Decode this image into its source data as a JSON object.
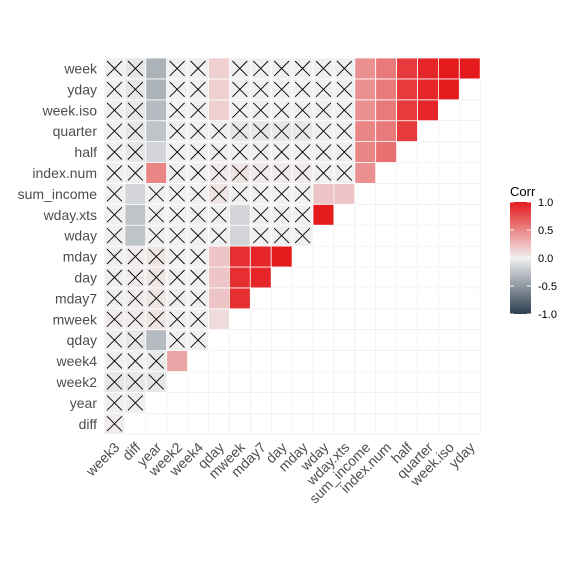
{
  "chart_data": {
    "type": "heatmap",
    "variables": [
      "week3",
      "diff",
      "year",
      "week2",
      "week4",
      "qday",
      "mweek",
      "mday7",
      "day",
      "mday",
      "wday",
      "wday.xts",
      "sum_income",
      "index.num",
      "half",
      "quarter",
      "week.iso",
      "yday"
    ],
    "row_labels": [
      "week",
      "yday",
      "week.iso",
      "quarter",
      "half",
      "index.num",
      "sum_income",
      "wday.xts",
      "wday",
      "mday",
      "day",
      "mday7",
      "mweek",
      "qday",
      "week4",
      "week2",
      "year",
      "diff"
    ],
    "col_labels": [
      "week3",
      "diff",
      "year",
      "week2",
      "week4",
      "qday",
      "mweek",
      "mday7",
      "day",
      "mday",
      "wday",
      "wday.xts",
      "sum_income",
      "index.num",
      "half",
      "quarter",
      "week.iso",
      "yday"
    ],
    "legend": {
      "title": "Corr",
      "ticks": [
        "1.0",
        "0.5",
        "0.0",
        "-0.5",
        "-1.0"
      ],
      "tick_values": [
        1.0,
        0.5,
        0.0,
        -0.5,
        -1.0
      ],
      "colors": {
        "low": "#2c3e50",
        "mid": "#f0f0f0",
        "high": "#e41a1c"
      },
      "placement": "right"
    },
    "insignificant_marker": "X",
    "lower_triangle": [
      {
        "row": "diff",
        "values": [
          {
            "col": "week3",
            "r": 0.02,
            "x": true
          }
        ]
      },
      {
        "row": "year",
        "values": [
          {
            "col": "week3",
            "r": 0.01,
            "x": true
          },
          {
            "col": "diff",
            "r": 0.01,
            "x": true
          }
        ]
      },
      {
        "row": "week2",
        "values": [
          {
            "col": "week3",
            "r": -0.05,
            "x": true
          },
          {
            "col": "diff",
            "r": -0.05,
            "x": true
          },
          {
            "col": "year",
            "r": -0.05,
            "x": true
          }
        ]
      },
      {
        "row": "week4",
        "values": [
          {
            "col": "week3",
            "r": 0.01,
            "x": true
          },
          {
            "col": "diff",
            "r": 0.01,
            "x": true
          },
          {
            "col": "year",
            "r": -0.03,
            "x": true
          },
          {
            "col": "week2",
            "r": 0.35,
            "x": false
          }
        ]
      },
      {
        "row": "qday",
        "values": [
          {
            "col": "week3",
            "r": 0.01,
            "x": true
          },
          {
            "col": "diff",
            "r": -0.05,
            "x": true
          },
          {
            "col": "year",
            "r": -0.3,
            "x": false
          },
          {
            "col": "week2",
            "r": 0.0,
            "x": true
          },
          {
            "col": "week4",
            "r": 0.0,
            "x": true
          }
        ]
      },
      {
        "row": "mweek",
        "values": [
          {
            "col": "week3",
            "r": 0.02,
            "x": true
          },
          {
            "col": "diff",
            "r": 0.03,
            "x": true
          },
          {
            "col": "year",
            "r": 0.05,
            "x": true
          },
          {
            "col": "week2",
            "r": 0.01,
            "x": true
          },
          {
            "col": "week4",
            "r": 0.01,
            "x": true
          },
          {
            "col": "qday",
            "r": 0.1,
            "x": false
          }
        ]
      },
      {
        "row": "mday7",
        "values": [
          {
            "col": "week3",
            "r": 0.01,
            "x": true
          },
          {
            "col": "diff",
            "r": 0.02,
            "x": true
          },
          {
            "col": "year",
            "r": 0.05,
            "x": true
          },
          {
            "col": "week2",
            "r": 0.01,
            "x": true
          },
          {
            "col": "week4",
            "r": 0.0,
            "x": true
          },
          {
            "col": "qday",
            "r": 0.2,
            "x": false
          },
          {
            "col": "mweek",
            "r": 0.9,
            "x": false
          }
        ]
      },
      {
        "row": "day",
        "values": [
          {
            "col": "week3",
            "r": 0.01,
            "x": true
          },
          {
            "col": "diff",
            "r": 0.02,
            "x": true
          },
          {
            "col": "year",
            "r": 0.05,
            "x": true
          },
          {
            "col": "week2",
            "r": 0.0,
            "x": true
          },
          {
            "col": "week4",
            "r": 0.0,
            "x": true
          },
          {
            "col": "qday",
            "r": 0.2,
            "x": false
          },
          {
            "col": "mweek",
            "r": 0.9,
            "x": false
          },
          {
            "col": "mday7",
            "r": 0.95,
            "x": false
          }
        ]
      },
      {
        "row": "mday",
        "values": [
          {
            "col": "week3",
            "r": 0.01,
            "x": true
          },
          {
            "col": "diff",
            "r": 0.02,
            "x": true
          },
          {
            "col": "year",
            "r": 0.05,
            "x": true
          },
          {
            "col": "week2",
            "r": 0.0,
            "x": true
          },
          {
            "col": "week4",
            "r": 0.0,
            "x": true
          },
          {
            "col": "qday",
            "r": 0.2,
            "x": false
          },
          {
            "col": "mweek",
            "r": 0.9,
            "x": false
          },
          {
            "col": "mday7",
            "r": 0.95,
            "x": false
          },
          {
            "col": "day",
            "r": 1.0,
            "x": false
          }
        ]
      },
      {
        "row": "wday",
        "values": [
          {
            "col": "week3",
            "r": 0.0,
            "x": true
          },
          {
            "col": "diff",
            "r": -0.25,
            "x": false
          },
          {
            "col": "year",
            "r": 0.0,
            "x": true
          },
          {
            "col": "week2",
            "r": 0.0,
            "x": true
          },
          {
            "col": "week4",
            "r": 0.0,
            "x": true
          },
          {
            "col": "qday",
            "r": 0.0,
            "x": true
          },
          {
            "col": "mweek",
            "r": -0.15,
            "x": false
          },
          {
            "col": "mday7",
            "r": 0.0,
            "x": true
          },
          {
            "col": "day",
            "r": 0.0,
            "x": true
          },
          {
            "col": "mday",
            "r": 0.0,
            "x": true
          }
        ]
      },
      {
        "row": "wday.xts",
        "values": [
          {
            "col": "week3",
            "r": 0.0,
            "x": true
          },
          {
            "col": "diff",
            "r": -0.25,
            "x": false
          },
          {
            "col": "year",
            "r": 0.0,
            "x": true
          },
          {
            "col": "week2",
            "r": 0.0,
            "x": true
          },
          {
            "col": "week4",
            "r": 0.0,
            "x": true
          },
          {
            "col": "qday",
            "r": 0.0,
            "x": true
          },
          {
            "col": "mweek",
            "r": -0.15,
            "x": false
          },
          {
            "col": "mday7",
            "r": 0.0,
            "x": true
          },
          {
            "col": "day",
            "r": 0.0,
            "x": true
          },
          {
            "col": "mday",
            "r": 0.0,
            "x": true
          },
          {
            "col": "wday",
            "r": 1.0,
            "x": false
          }
        ]
      },
      {
        "row": "sum_income",
        "values": [
          {
            "col": "week3",
            "r": 0.0,
            "x": true
          },
          {
            "col": "diff",
            "r": -0.15,
            "x": false
          },
          {
            "col": "year",
            "r": 0.0,
            "x": true
          },
          {
            "col": "week2",
            "r": 0.0,
            "x": true
          },
          {
            "col": "week4",
            "r": 0.0,
            "x": true
          },
          {
            "col": "qday",
            "r": 0.05,
            "x": true
          },
          {
            "col": "mweek",
            "r": 0.0,
            "x": true
          },
          {
            "col": "mday7",
            "r": 0.0,
            "x": true
          },
          {
            "col": "day",
            "r": 0.0,
            "x": true
          },
          {
            "col": "mday",
            "r": 0.0,
            "x": true
          },
          {
            "col": "wday",
            "r": 0.2,
            "x": false
          },
          {
            "col": "wday.xts",
            "r": 0.2,
            "x": false
          }
        ]
      },
      {
        "row": "index.num",
        "values": [
          {
            "col": "week3",
            "r": 0.0,
            "x": true
          },
          {
            "col": "diff",
            "r": 0.0,
            "x": true
          },
          {
            "col": "year",
            "r": 0.5,
            "x": false
          },
          {
            "col": "week2",
            "r": 0.0,
            "x": true
          },
          {
            "col": "week4",
            "r": 0.0,
            "x": true
          },
          {
            "col": "qday",
            "r": 0.03,
            "x": true
          },
          {
            "col": "mweek",
            "r": 0.05,
            "x": true
          },
          {
            "col": "mday7",
            "r": 0.03,
            "x": true
          },
          {
            "col": "day",
            "r": 0.03,
            "x": true
          },
          {
            "col": "mday",
            "r": 0.03,
            "x": true
          },
          {
            "col": "wday",
            "r": 0.0,
            "x": true
          },
          {
            "col": "wday.xts",
            "r": 0.0,
            "x": true
          },
          {
            "col": "sum_income",
            "r": 0.45,
            "x": false
          }
        ]
      },
      {
        "row": "half",
        "values": [
          {
            "col": "week3",
            "r": 0.0,
            "x": true
          },
          {
            "col": "diff",
            "r": -0.05,
            "x": true
          },
          {
            "col": "year",
            "r": -0.15,
            "x": false
          },
          {
            "col": "week2",
            "r": 0.0,
            "x": true
          },
          {
            "col": "week4",
            "r": 0.0,
            "x": true
          },
          {
            "col": "qday",
            "r": 0.0,
            "x": true
          },
          {
            "col": "mweek",
            "r": 0.0,
            "x": true
          },
          {
            "col": "mday7",
            "r": 0.0,
            "x": true
          },
          {
            "col": "day",
            "r": 0.0,
            "x": true
          },
          {
            "col": "mday",
            "r": 0.0,
            "x": true
          },
          {
            "col": "wday",
            "r": 0.0,
            "x": true
          },
          {
            "col": "wday.xts",
            "r": 0.0,
            "x": true
          },
          {
            "col": "sum_income",
            "r": 0.5,
            "x": false
          },
          {
            "col": "index.num",
            "r": 0.6,
            "x": false
          }
        ]
      },
      {
        "row": "quarter",
        "values": [
          {
            "col": "week3",
            "r": 0.0,
            "x": true
          },
          {
            "col": "diff",
            "r": -0.05,
            "x": true
          },
          {
            "col": "year",
            "r": -0.25,
            "x": false
          },
          {
            "col": "week2",
            "r": 0.0,
            "x": true
          },
          {
            "col": "week4",
            "r": 0.0,
            "x": true
          },
          {
            "col": "qday",
            "r": 0.0,
            "x": true
          },
          {
            "col": "mweek",
            "r": -0.05,
            "x": true
          },
          {
            "col": "mday7",
            "r": -0.05,
            "x": true
          },
          {
            "col": "day",
            "r": -0.05,
            "x": true
          },
          {
            "col": "mday",
            "r": -0.05,
            "x": true
          },
          {
            "col": "wday",
            "r": 0.0,
            "x": true
          },
          {
            "col": "wday.xts",
            "r": 0.0,
            "x": true
          },
          {
            "col": "sum_income",
            "r": 0.5,
            "x": false
          },
          {
            "col": "index.num",
            "r": 0.55,
            "x": false
          },
          {
            "col": "half",
            "r": 0.85,
            "x": false
          }
        ]
      },
      {
        "row": "week.iso",
        "values": [
          {
            "col": "week3",
            "r": 0.0,
            "x": true
          },
          {
            "col": "diff",
            "r": -0.05,
            "x": true
          },
          {
            "col": "year",
            "r": -0.3,
            "x": false
          },
          {
            "col": "week2",
            "r": 0.0,
            "x": true
          },
          {
            "col": "week4",
            "r": 0.0,
            "x": true
          },
          {
            "col": "qday",
            "r": 0.15,
            "x": false
          },
          {
            "col": "mweek",
            "r": 0.0,
            "x": true
          },
          {
            "col": "mday7",
            "r": 0.0,
            "x": true
          },
          {
            "col": "day",
            "r": 0.0,
            "x": true
          },
          {
            "col": "mday",
            "r": 0.0,
            "x": true
          },
          {
            "col": "wday",
            "r": 0.0,
            "x": true
          },
          {
            "col": "wday.xts",
            "r": 0.0,
            "x": true
          },
          {
            "col": "sum_income",
            "r": 0.45,
            "x": false
          },
          {
            "col": "index.num",
            "r": 0.55,
            "x": false
          },
          {
            "col": "half",
            "r": 0.85,
            "x": false
          },
          {
            "col": "quarter",
            "r": 0.95,
            "x": false
          }
        ]
      },
      {
        "row": "yday",
        "values": [
          {
            "col": "week3",
            "r": 0.0,
            "x": true
          },
          {
            "col": "diff",
            "r": -0.05,
            "x": true
          },
          {
            "col": "year",
            "r": -0.35,
            "x": false
          },
          {
            "col": "week2",
            "r": 0.0,
            "x": true
          },
          {
            "col": "week4",
            "r": 0.0,
            "x": true
          },
          {
            "col": "qday",
            "r": 0.15,
            "x": false
          },
          {
            "col": "mweek",
            "r": 0.0,
            "x": true
          },
          {
            "col": "mday7",
            "r": 0.0,
            "x": true
          },
          {
            "col": "day",
            "r": 0.0,
            "x": true
          },
          {
            "col": "mday",
            "r": 0.0,
            "x": true
          },
          {
            "col": "wday",
            "r": 0.0,
            "x": true
          },
          {
            "col": "wday.xts",
            "r": 0.0,
            "x": true
          },
          {
            "col": "sum_income",
            "r": 0.45,
            "x": false
          },
          {
            "col": "index.num",
            "r": 0.55,
            "x": false
          },
          {
            "col": "half",
            "r": 0.85,
            "x": false
          },
          {
            "col": "quarter",
            "r": 0.95,
            "x": false
          },
          {
            "col": "week.iso",
            "r": 1.0,
            "x": false
          }
        ]
      },
      {
        "row": "week",
        "values": [
          {
            "col": "week3",
            "r": 0.0,
            "x": true
          },
          {
            "col": "diff",
            "r": -0.05,
            "x": true
          },
          {
            "col": "year",
            "r": -0.35,
            "x": false
          },
          {
            "col": "week2",
            "r": 0.0,
            "x": true
          },
          {
            "col": "week4",
            "r": 0.0,
            "x": true
          },
          {
            "col": "qday",
            "r": 0.15,
            "x": false
          },
          {
            "col": "mweek",
            "r": 0.0,
            "x": true
          },
          {
            "col": "mday7",
            "r": 0.0,
            "x": true
          },
          {
            "col": "day",
            "r": 0.0,
            "x": true
          },
          {
            "col": "mday",
            "r": 0.0,
            "x": true
          },
          {
            "col": "wday",
            "r": 0.0,
            "x": true
          },
          {
            "col": "wday.xts",
            "r": 0.0,
            "x": true
          },
          {
            "col": "sum_income",
            "r": 0.45,
            "x": false
          },
          {
            "col": "index.num",
            "r": 0.55,
            "x": false
          },
          {
            "col": "half",
            "r": 0.85,
            "x": false
          },
          {
            "col": "quarter",
            "r": 0.95,
            "x": false
          },
          {
            "col": "week.iso",
            "r": 1.0,
            "x": false
          },
          {
            "col": "yday",
            "r": 1.0,
            "x": false
          }
        ]
      }
    ]
  }
}
